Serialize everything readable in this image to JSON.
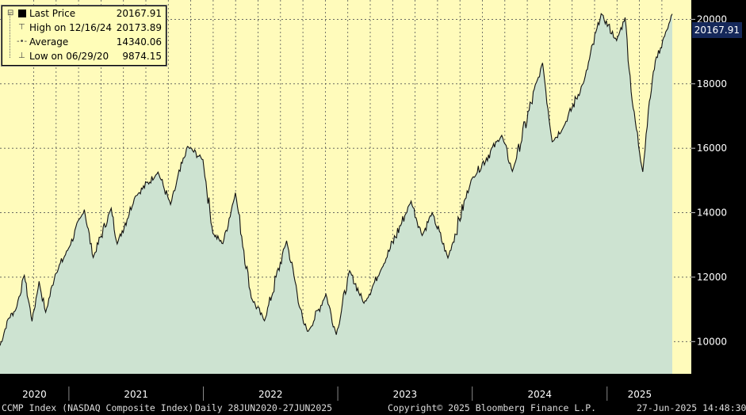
{
  "legend": {
    "rows": [
      {
        "label": "Last Price",
        "value": "20167.91"
      },
      {
        "label": "High on 12/16/24",
        "value": "20173.89"
      },
      {
        "label": "Average",
        "value": "14340.06"
      },
      {
        "label": "Low on 06/29/20",
        "value": "9874.15"
      }
    ]
  },
  "last_price_label": "20167.91",
  "footer": {
    "index": "CCMP Index (NASDAQ Composite Index)",
    "range": "Daily 28JUN2020-27JUN2025",
    "copyright": "Copyright© 2025 Bloomberg Finance L.P.",
    "timestamp": "27-Jun-2025 14:48:30"
  },
  "chart_data": {
    "type": "area",
    "title": "",
    "xlabel": "",
    "ylabel": "",
    "x_tick_labels": [
      "2020",
      "2021",
      "2022",
      "2023",
      "2024",
      "2025"
    ],
    "y_tick_labels": [
      "10000",
      "12000",
      "14000",
      "16000",
      "18000",
      "20000"
    ],
    "ylim": [
      9000,
      20600
    ],
    "xlim": [
      "2020-06-28",
      "2025-06-27"
    ],
    "grid": true,
    "colors": {
      "plot_bg": "#fffbbb",
      "area_fill": "#cde3d1",
      "line": "#111111",
      "last_label_bg": "#15285a"
    },
    "series": [
      {
        "points": [
          [
            "2020-06-28",
            9874
          ],
          [
            "2020-07-20",
            10700
          ],
          [
            "2020-08-10",
            11000
          ],
          [
            "2020-09-02",
            12056
          ],
          [
            "2020-09-23",
            10630
          ],
          [
            "2020-10-12",
            11870
          ],
          [
            "2020-10-30",
            10911
          ],
          [
            "2020-11-25",
            12090
          ],
          [
            "2020-12-31",
            12888
          ],
          [
            "2021-02-12",
            14095
          ],
          [
            "2021-03-08",
            12609
          ],
          [
            "2021-04-26",
            14138
          ],
          [
            "2021-05-12",
            13031
          ],
          [
            "2021-06-30",
            14500
          ],
          [
            "2021-08-31",
            15259
          ],
          [
            "2021-10-04",
            14255
          ],
          [
            "2021-11-19",
            16057
          ],
          [
            "2021-12-31",
            15645
          ],
          [
            "2022-01-27",
            13352
          ],
          [
            "2022-02-23",
            13037
          ],
          [
            "2022-03-29",
            14620
          ],
          [
            "2022-05-11",
            11364
          ],
          [
            "2022-06-16",
            10646
          ],
          [
            "2022-08-15",
            13128
          ],
          [
            "2022-09-30",
            10575
          ],
          [
            "2022-10-13",
            10321
          ],
          [
            "2022-11-30",
            11468
          ],
          [
            "2022-12-28",
            10213
          ],
          [
            "2023-02-02",
            12200
          ],
          [
            "2023-03-13",
            11189
          ],
          [
            "2023-04-28",
            12226
          ],
          [
            "2023-07-19",
            14358
          ],
          [
            "2023-08-18",
            13290
          ],
          [
            "2023-09-14",
            14000
          ],
          [
            "2023-10-27",
            12595
          ],
          [
            "2023-12-29",
            15011
          ],
          [
            "2024-03-21",
            16401
          ],
          [
            "2024-04-19",
            15282
          ],
          [
            "2024-07-10",
            18647
          ],
          [
            "2024-08-05",
            16200
          ],
          [
            "2024-09-06",
            16690
          ],
          [
            "2024-10-31",
            18095
          ],
          [
            "2024-12-16",
            20174
          ],
          [
            "2025-01-27",
            19342
          ],
          [
            "2025-02-19",
            20056
          ],
          [
            "2025-03-10",
            17468
          ],
          [
            "2025-04-08",
            15268
          ],
          [
            "2025-04-23",
            17166
          ],
          [
            "2025-05-12",
            18708
          ],
          [
            "2025-06-12",
            19662
          ],
          [
            "2025-06-27",
            20168
          ]
        ]
      }
    ]
  }
}
